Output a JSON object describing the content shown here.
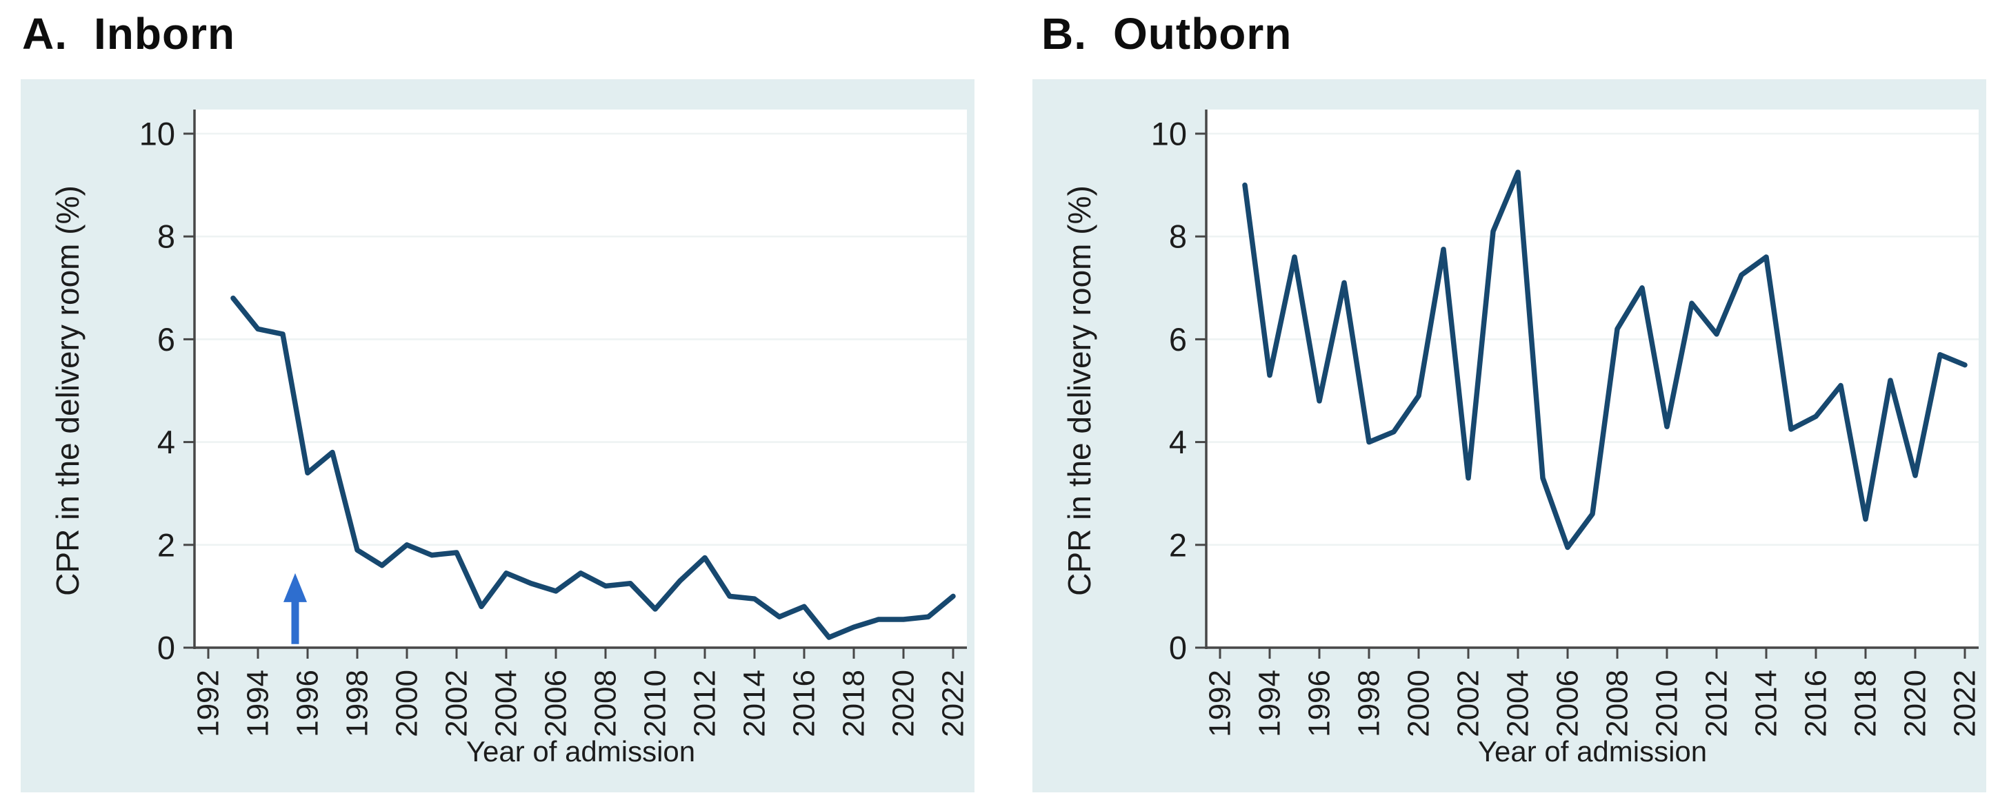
{
  "panels": [
    {
      "label": "A.",
      "name": "Inborn"
    },
    {
      "label": "B.",
      "name": "Outborn"
    }
  ],
  "colors": {
    "page_background": "#ffffff",
    "panel_background": "#e2eef0",
    "plot_background": "#ffffff",
    "gridline": "#eef3f3",
    "axis": "#474747",
    "tick_label": "#1c1c1c",
    "axis_title": "#1c1c1c",
    "series_line": "#17486f",
    "arrow": "#2e6ecf"
  },
  "chart_data": [
    {
      "type": "line",
      "title": "A. Inborn",
      "xlabel": "Year of admission",
      "ylabel": "CPR in the delivery room (%)",
      "ylim": [
        0,
        10
      ],
      "yticks": [
        0,
        2,
        4,
        6,
        8,
        10
      ],
      "xticks": [
        1992,
        1994,
        1996,
        1998,
        2000,
        2002,
        2004,
        2006,
        2008,
        2010,
        2012,
        2014,
        2016,
        2018,
        2020,
        2022
      ],
      "grid": "horizontal",
      "legend": "none",
      "x": [
        1993,
        1994,
        1995,
        1996,
        1997,
        1998,
        1999,
        2000,
        2001,
        2002,
        2003,
        2004,
        2005,
        2006,
        2007,
        2008,
        2009,
        2010,
        2011,
        2012,
        2013,
        2014,
        2015,
        2016,
        2017,
        2018,
        2019,
        2020,
        2021,
        2022
      ],
      "values": [
        6.8,
        6.2,
        6.1,
        3.4,
        3.8,
        1.9,
        1.6,
        2.0,
        1.8,
        1.85,
        0.8,
        1.45,
        1.25,
        1.1,
        1.45,
        1.2,
        1.25,
        0.75,
        1.3,
        1.75,
        1.0,
        0.95,
        0.6,
        0.8,
        0.2,
        0.4,
        0.55,
        0.55,
        0.6,
        1.0
      ],
      "annotation": {
        "type": "arrow-up",
        "x": 1995.5,
        "y_base": 0.07,
        "y_tip": 1.45
      }
    },
    {
      "type": "line",
      "title": "B. Outborn",
      "xlabel": "Year of admission",
      "ylabel": "CPR in the delivery room (%)",
      "ylim": [
        0,
        10
      ],
      "yticks": [
        0,
        2,
        4,
        6,
        8,
        10
      ],
      "xticks": [
        1992,
        1994,
        1996,
        1998,
        2000,
        2002,
        2004,
        2006,
        2008,
        2010,
        2012,
        2014,
        2016,
        2018,
        2020,
        2022
      ],
      "grid": "horizontal",
      "legend": "none",
      "x": [
        1993,
        1994,
        1995,
        1996,
        1997,
        1998,
        1999,
        2000,
        2001,
        2002,
        2003,
        2004,
        2005,
        2006,
        2007,
        2008,
        2009,
        2010,
        2011,
        2012,
        2013,
        2014,
        2015,
        2016,
        2017,
        2018,
        2019,
        2020,
        2021,
        2022
      ],
      "values": [
        9.0,
        5.3,
        7.6,
        4.8,
        7.1,
        4.0,
        4.2,
        4.9,
        7.75,
        3.3,
        8.1,
        9.25,
        3.3,
        1.95,
        2.6,
        6.2,
        7.0,
        4.3,
        6.7,
        6.1,
        7.25,
        7.6,
        4.25,
        4.5,
        5.1,
        2.5,
        5.2,
        3.35,
        5.7,
        5.5
      ],
      "annotation": null
    }
  ]
}
